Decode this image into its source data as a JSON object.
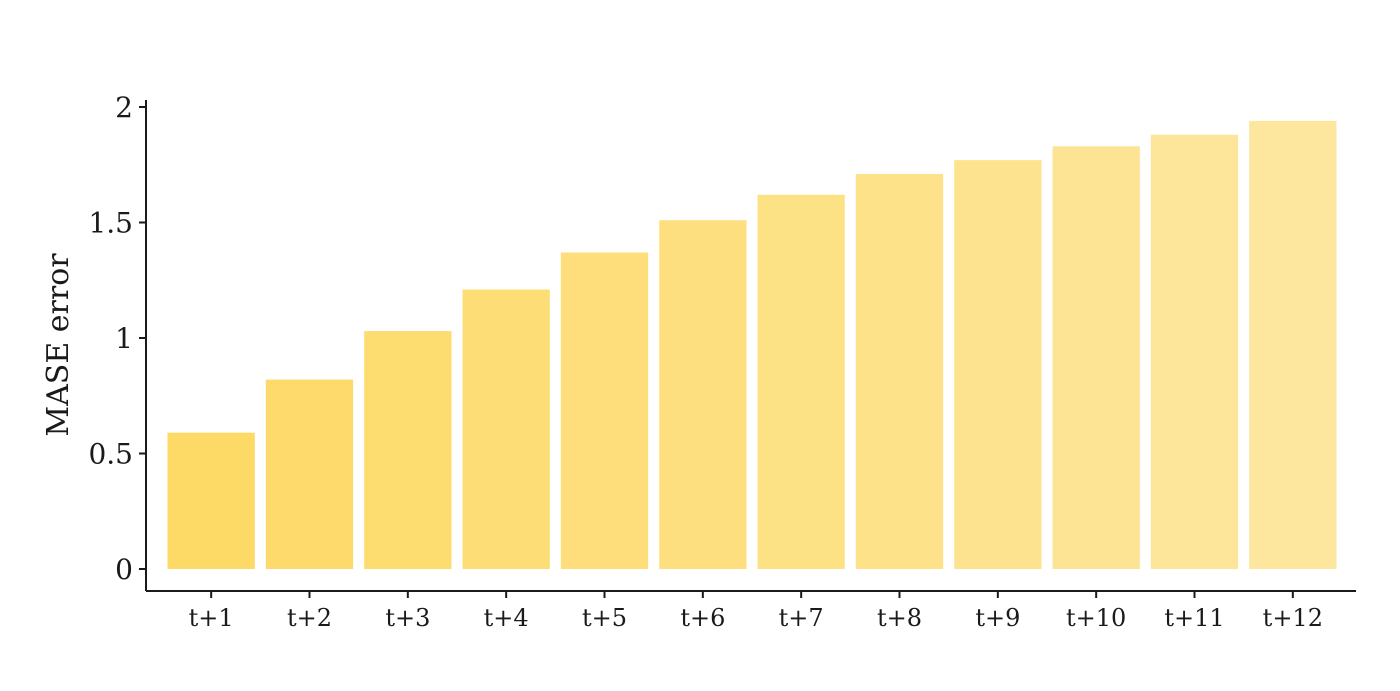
{
  "chart_data": {
    "type": "bar",
    "categories": [
      "t+1",
      "t+2",
      "t+3",
      "t+4",
      "t+5",
      "t+6",
      "t+7",
      "t+8",
      "t+9",
      "t+10",
      "t+11",
      "t+12"
    ],
    "values": [
      0.59,
      0.82,
      1.03,
      1.21,
      1.37,
      1.51,
      1.62,
      1.71,
      1.77,
      1.83,
      1.88,
      1.94
    ],
    "title": "",
    "xlabel": "",
    "ylabel": "MASE error",
    "ylim": [
      0,
      2
    ],
    "yticks": [
      0,
      0.5,
      1,
      1.5,
      2
    ],
    "ytick_labels": [
      "0",
      "0.5",
      "1",
      "1.5",
      "2"
    ],
    "grid": false,
    "legend": "none",
    "colors": {
      "bar_start": "#FDD966",
      "bar_end": "#FDE79E",
      "axis": "#1a1a1a"
    }
  }
}
